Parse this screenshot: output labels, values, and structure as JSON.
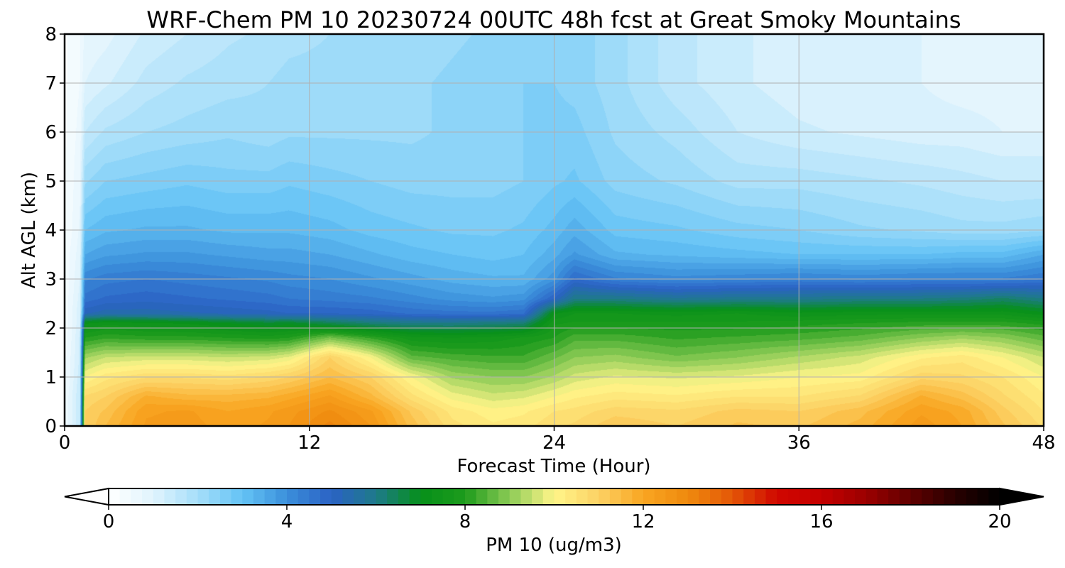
{
  "chart_data": {
    "type": "heatmap",
    "title": "WRF-Chem PM 10  20230724 00UTC 48h fcst at Great Smoky Mountains",
    "xlabel": "Forecast Time (Hour)",
    "ylabel": "Alt AGL (km)",
    "xlim": [
      0,
      48
    ],
    "ylim": [
      0,
      8
    ],
    "x_ticks": [
      0,
      12,
      24,
      36,
      48
    ],
    "x_tick_labels": [
      "0",
      "12",
      "24",
      "36",
      "48"
    ],
    "y_ticks": [
      0,
      1,
      2,
      3,
      4,
      5,
      6,
      7,
      8
    ],
    "y_tick_labels": [
      "0",
      "1",
      "2",
      "3",
      "4",
      "5",
      "6",
      "7",
      "8"
    ],
    "grid": true,
    "x": [
      0,
      0.75,
      1,
      2,
      4,
      6,
      8,
      10,
      11,
      13,
      15,
      17,
      19,
      21,
      22.5,
      24,
      25,
      27,
      30,
      33,
      36,
      39,
      42,
      44,
      46,
      48
    ],
    "y": [
      0,
      0.3,
      0.6,
      1.0,
      1.4,
      1.8,
      2.1,
      2.3,
      2.6,
      3.0,
      3.5,
      4.0,
      5.0,
      6.0,
      7.0,
      8.0
    ],
    "z_units": "ug/m3",
    "z_profiles_by_time": [
      [
        0.5,
        0.5,
        0.5,
        0.4,
        0.4,
        0.3,
        0.3,
        0.3,
        0.3,
        0.3,
        0.3,
        0.2,
        0.2,
        0.2,
        0.2,
        0.2
      ],
      [
        1.5,
        1.5,
        1.5,
        1.4,
        1.3,
        1.3,
        1.2,
        1.2,
        1.1,
        1.0,
        0.9,
        0.8,
        0.7,
        0.6,
        0.5,
        0.5
      ],
      [
        11.0,
        11.0,
        10.8,
        10.0,
        9.2,
        8.0,
        7.2,
        5.2,
        4.6,
        4.2,
        3.5,
        3.0,
        2.2,
        1.5,
        1.0,
        0.8
      ],
      [
        11.5,
        11.3,
        11.0,
        10.4,
        9.5,
        8.2,
        7.4,
        5.4,
        4.8,
        4.4,
        3.7,
        3.2,
        2.5,
        1.8,
        1.2,
        0.9
      ],
      [
        12.3,
        12.2,
        11.8,
        10.7,
        9.6,
        8.1,
        7.3,
        5.4,
        4.9,
        4.5,
        3.8,
        3.3,
        2.6,
        2.0,
        1.6,
        1.3
      ],
      [
        12.4,
        12.3,
        11.6,
        10.7,
        9.6,
        8.1,
        7.2,
        5.3,
        4.8,
        4.4,
        3.8,
        3.3,
        2.7,
        2.1,
        1.8,
        1.5
      ],
      [
        12.1,
        12.0,
        11.6,
        10.6,
        9.5,
        8.0,
        7.0,
        5.2,
        4.7,
        4.3,
        3.7,
        3.2,
        2.6,
        2.2,
        1.9,
        1.7
      ],
      [
        12.3,
        12.2,
        11.7,
        10.8,
        9.6,
        7.9,
        6.8,
        5.1,
        4.6,
        4.2,
        3.6,
        3.2,
        2.6,
        2.1,
        2.0,
        1.8
      ],
      [
        12.5,
        12.4,
        11.9,
        11.0,
        9.8,
        8.0,
        6.9,
        5.0,
        4.5,
        4.1,
        3.6,
        3.2,
        2.7,
        2.2,
        2.1,
        1.9
      ],
      [
        13.1,
        12.8,
        12.3,
        11.5,
        11.0,
        8.8,
        6.5,
        5.0,
        4.4,
        4.0,
        3.5,
        3.1,
        2.6,
        2.2,
        2.1,
        2.0
      ],
      [
        12.5,
        12.3,
        11.6,
        11.0,
        10.0,
        8.2,
        6.2,
        4.9,
        4.3,
        3.8,
        3.3,
        2.9,
        2.5,
        2.2,
        2.1,
        2.0
      ],
      [
        11.4,
        11.2,
        10.6,
        10.0,
        8.6,
        7.6,
        6.0,
        4.7,
        4.1,
        3.6,
        3.1,
        2.8,
        2.4,
        2.2,
        2.2,
        2.1
      ],
      [
        10.6,
        10.4,
        9.9,
        9.2,
        8.4,
        7.5,
        6.0,
        4.6,
        3.9,
        3.4,
        3.0,
        2.7,
        2.4,
        2.3,
        2.3,
        2.2
      ],
      [
        10.3,
        10.1,
        9.6,
        9.0,
        8.3,
        7.6,
        6.1,
        4.6,
        3.8,
        3.3,
        2.9,
        2.7,
        2.4,
        2.4,
        2.4,
        2.3
      ],
      [
        10.4,
        10.2,
        9.7,
        9.0,
        8.3,
        7.8,
        6.2,
        4.7,
        3.9,
        3.3,
        3.0,
        2.8,
        2.5,
        2.5,
        2.5,
        2.4
      ],
      [
        10.7,
        10.5,
        10.0,
        9.3,
        8.7,
        8.0,
        7.7,
        7.2,
        5.0,
        3.9,
        3.4,
        3.1,
        2.7,
        2.6,
        2.5,
        2.5
      ],
      [
        10.8,
        10.6,
        10.2,
        9.6,
        9.0,
        8.4,
        7.8,
        7.5,
        6.0,
        4.8,
        3.8,
        3.4,
        2.8,
        2.6,
        2.4,
        2.4
      ],
      [
        11.2,
        10.9,
        10.4,
        9.8,
        9.1,
        8.4,
        7.8,
        7.5,
        6.0,
        4.3,
        3.3,
        2.9,
        2.4,
        2.2,
        2.1,
        2.1
      ],
      [
        11.0,
        10.8,
        10.3,
        9.7,
        8.8,
        8.2,
        7.8,
        7.4,
        5.8,
        4.1,
        3.2,
        2.8,
        2.2,
        1.9,
        1.6,
        1.6
      ],
      [
        11.3,
        11.1,
        10.5,
        9.8,
        9.0,
        8.3,
        7.8,
        7.5,
        5.9,
        4.2,
        3.1,
        2.6,
        1.9,
        1.5,
        1.3,
        1.3
      ],
      [
        11.2,
        11.0,
        10.5,
        10.0,
        9.3,
        8.4,
        7.9,
        7.3,
        5.9,
        4.3,
        3.0,
        2.5,
        1.9,
        1.3,
        1.1,
        1.1
      ],
      [
        11.6,
        11.4,
        10.8,
        10.1,
        9.6,
        8.6,
        8.0,
        7.4,
        6.0,
        4.2,
        3.0,
        2.3,
        1.8,
        1.2,
        1.0,
        1.0
      ],
      [
        12.4,
        12.2,
        11.8,
        10.9,
        10.2,
        9.0,
        8.1,
        7.4,
        6.0,
        4.3,
        3.0,
        2.2,
        1.7,
        1.1,
        1.0,
        1.0
      ],
      [
        12.0,
        11.9,
        11.4,
        10.8,
        10.4,
        9.2,
        8.1,
        7.4,
        6.1,
        4.3,
        3.1,
        2.1,
        1.6,
        1.1,
        0.9,
        1.0
      ],
      [
        11.3,
        11.1,
        10.8,
        10.5,
        10.0,
        9.0,
        8.1,
        7.4,
        6.3,
        4.3,
        3.1,
        2.1,
        1.5,
        1.0,
        0.9,
        0.9
      ],
      [
        10.7,
        10.5,
        10.3,
        10.0,
        9.5,
        8.6,
        7.9,
        7.1,
        6.0,
        4.5,
        3.5,
        2.2,
        1.5,
        1.0,
        0.9,
        0.9
      ]
    ],
    "colorbar": {
      "label": "PM 10  (ug/m3)",
      "min": 0,
      "max": 20,
      "ticks": [
        0,
        4,
        8,
        12,
        16,
        20
      ],
      "tick_labels": [
        "0",
        "4",
        "8",
        "12",
        "16",
        "20"
      ],
      "extend": "both",
      "min_color": "#ffffff",
      "max_color": "#000000",
      "color_stops": [
        [
          0,
          "#ffffff"
        ],
        [
          1,
          "#e0f4fd"
        ],
        [
          2,
          "#a6defa"
        ],
        [
          3,
          "#64c3f5"
        ],
        [
          4,
          "#3b8fdb"
        ],
        [
          5,
          "#2b62c4"
        ],
        [
          6,
          "#1e7a8a"
        ],
        [
          7,
          "#06901a"
        ],
        [
          8,
          "#1d9b1c"
        ],
        [
          9,
          "#8ccb55"
        ],
        [
          10,
          "#fff58a"
        ],
        [
          11,
          "#fcd264"
        ],
        [
          12,
          "#f9a521"
        ],
        [
          13,
          "#ef8a0e"
        ],
        [
          14,
          "#e35607"
        ],
        [
          15,
          "#d00700"
        ],
        [
          16,
          "#c40000"
        ],
        [
          17,
          "#9b0000"
        ],
        [
          18,
          "#600000"
        ],
        [
          19,
          "#280000"
        ],
        [
          20,
          "#000000"
        ]
      ]
    }
  }
}
